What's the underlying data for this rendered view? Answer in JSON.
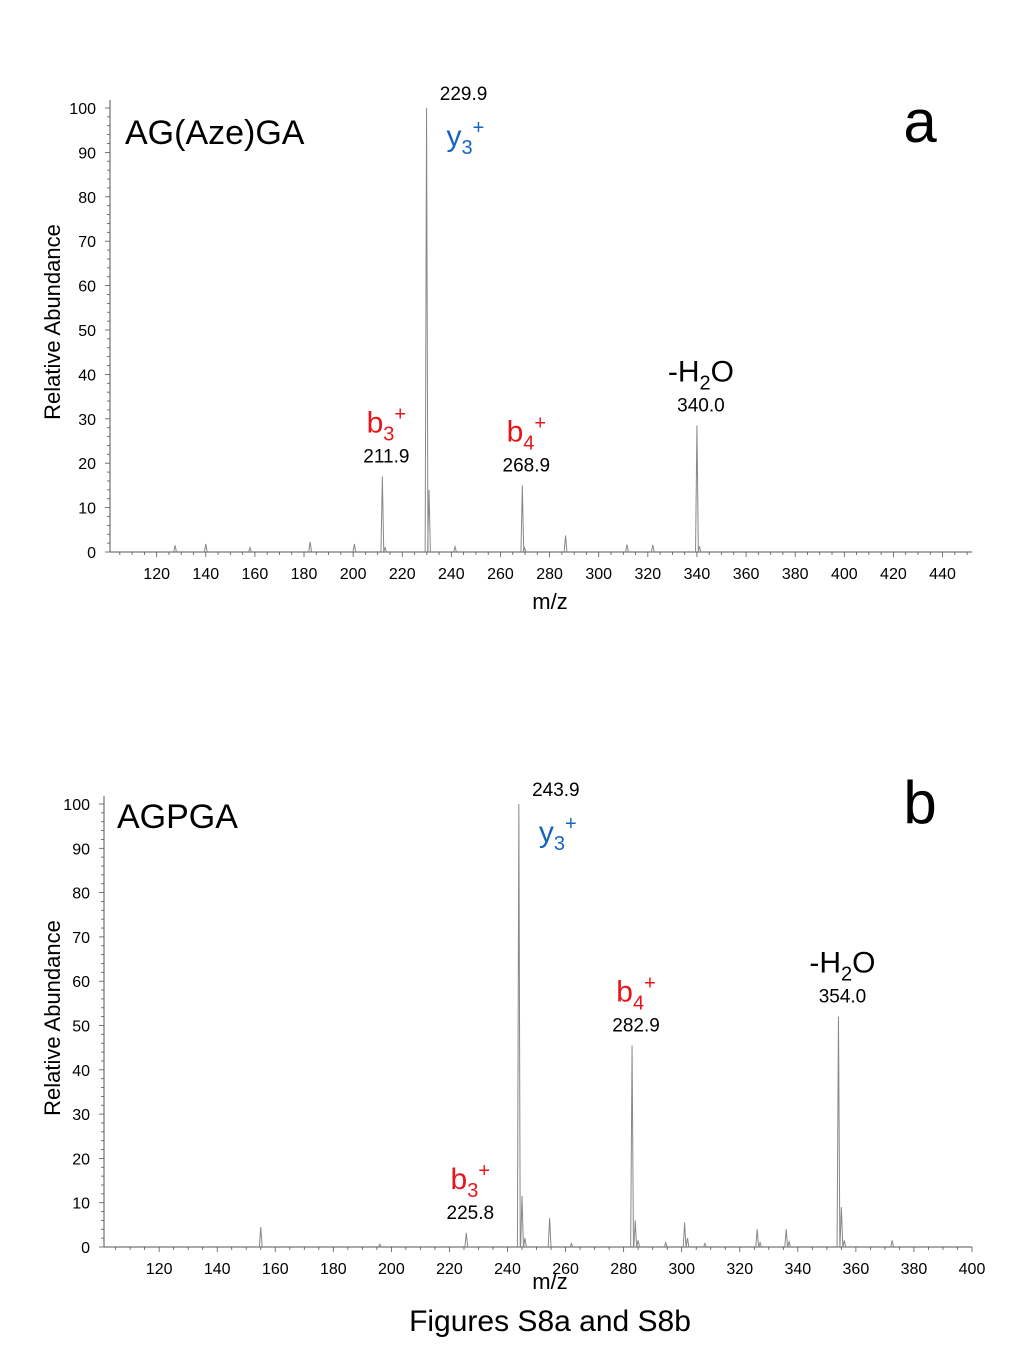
{
  "caption": "Figures S8a and S8b",
  "colors": {
    "b_ion": "#e8141a",
    "y_ion": "#1565c0",
    "peak": "#888888",
    "axis": "#555555",
    "text": "#000000"
  },
  "chart_data": [
    {
      "id": "a",
      "type": "line",
      "panel_label": "a",
      "title": "AG(Aze)GA",
      "xlabel": "m/z",
      "ylabel": "Relative Abundance",
      "xlim": [
        101,
        452
      ],
      "ylim": [
        0,
        100
      ],
      "xticks": [
        "120",
        "140",
        "160",
        "180",
        "200",
        "220",
        "240",
        "260",
        "280",
        "300",
        "320",
        "340",
        "360",
        "380",
        "400",
        "420",
        "440"
      ],
      "yticks": [
        "0",
        "10",
        "20",
        "30",
        "40",
        "50",
        "60",
        "70",
        "80",
        "90",
        "100"
      ],
      "peaks": [
        {
          "mz": 127.5,
          "intensity": 1.5
        },
        {
          "mz": 140.0,
          "intensity": 1.8
        },
        {
          "mz": 158.0,
          "intensity": 1.0
        },
        {
          "mz": 182.5,
          "intensity": 2.3
        },
        {
          "mz": 200.5,
          "intensity": 1.8
        },
        {
          "mz": 211.9,
          "intensity": 17.0
        },
        {
          "mz": 213.0,
          "intensity": 1.0
        },
        {
          "mz": 229.9,
          "intensity": 100.0
        },
        {
          "mz": 230.9,
          "intensity": 14.0
        },
        {
          "mz": 241.5,
          "intensity": 1.2
        },
        {
          "mz": 268.9,
          "intensity": 15.0
        },
        {
          "mz": 269.8,
          "intensity": 1.0
        },
        {
          "mz": 286.5,
          "intensity": 3.7
        },
        {
          "mz": 311.5,
          "intensity": 1.7
        },
        {
          "mz": 322.0,
          "intensity": 1.6
        },
        {
          "mz": 340.0,
          "intensity": 28.5
        },
        {
          "mz": 341.0,
          "intensity": 1.3
        }
      ],
      "annotations": [
        {
          "mz": 229.9,
          "value": "229.9",
          "ion": "y",
          "sub": "3",
          "sup": "+",
          "color": "y_ion"
        },
        {
          "mz": 211.9,
          "value": "211.9",
          "ion": "b",
          "sub": "3",
          "sup": "+",
          "color": "b_ion"
        },
        {
          "mz": 268.9,
          "value": "268.9",
          "ion": "b",
          "sub": "4",
          "sup": "+",
          "color": "b_ion"
        },
        {
          "mz": 340.0,
          "value": "340.0",
          "ion": "-H",
          "sub": "2",
          "ion_after": "O",
          "color": "text"
        }
      ]
    },
    {
      "id": "b",
      "type": "line",
      "panel_label": "b",
      "title": "AGPGA",
      "xlabel": "m/z",
      "ylabel": "Relative Abundance",
      "xlim": [
        101,
        400
      ],
      "ylim": [
        0,
        100
      ],
      "xticks": [
        "120",
        "140",
        "160",
        "180",
        "200",
        "220",
        "240",
        "260",
        "280",
        "300",
        "320",
        "340",
        "360",
        "380",
        "400"
      ],
      "yticks": [
        "0",
        "10",
        "20",
        "30",
        "40",
        "50",
        "60",
        "70",
        "80",
        "90",
        "100"
      ],
      "peaks": [
        {
          "mz": 155.0,
          "intensity": 4.5
        },
        {
          "mz": 196.0,
          "intensity": 0.6
        },
        {
          "mz": 225.8,
          "intensity": 3.2
        },
        {
          "mz": 243.9,
          "intensity": 100.0
        },
        {
          "mz": 245.0,
          "intensity": 11.5
        },
        {
          "mz": 246.0,
          "intensity": 2.0
        },
        {
          "mz": 254.5,
          "intensity": 6.5
        },
        {
          "mz": 262.0,
          "intensity": 0.8
        },
        {
          "mz": 282.9,
          "intensity": 45.5
        },
        {
          "mz": 284.0,
          "intensity": 6.0
        },
        {
          "mz": 285.0,
          "intensity": 1.5
        },
        {
          "mz": 294.5,
          "intensity": 1.0
        },
        {
          "mz": 301.0,
          "intensity": 5.5
        },
        {
          "mz": 302.0,
          "intensity": 2.0
        },
        {
          "mz": 308.0,
          "intensity": 0.8
        },
        {
          "mz": 326.0,
          "intensity": 4.0
        },
        {
          "mz": 327.0,
          "intensity": 1.0
        },
        {
          "mz": 336.0,
          "intensity": 4.0
        },
        {
          "mz": 337.0,
          "intensity": 1.2
        },
        {
          "mz": 354.0,
          "intensity": 52.0
        },
        {
          "mz": 355.0,
          "intensity": 9.0
        },
        {
          "mz": 356.0,
          "intensity": 1.5
        },
        {
          "mz": 372.5,
          "intensity": 1.5
        }
      ],
      "annotations": [
        {
          "mz": 243.9,
          "value": "243.9",
          "ion": "y",
          "sub": "3",
          "sup": "+",
          "color": "y_ion"
        },
        {
          "mz": 225.8,
          "value": "225.8",
          "ion": "b",
          "sub": "3",
          "sup": "+",
          "color": "b_ion"
        },
        {
          "mz": 282.9,
          "value": "282.9",
          "ion": "b",
          "sub": "4",
          "sup": "+",
          "color": "b_ion"
        },
        {
          "mz": 354.0,
          "value": "354.0",
          "ion": "-H",
          "sub": "2",
          "ion_after": "O",
          "color": "text"
        }
      ]
    }
  ]
}
